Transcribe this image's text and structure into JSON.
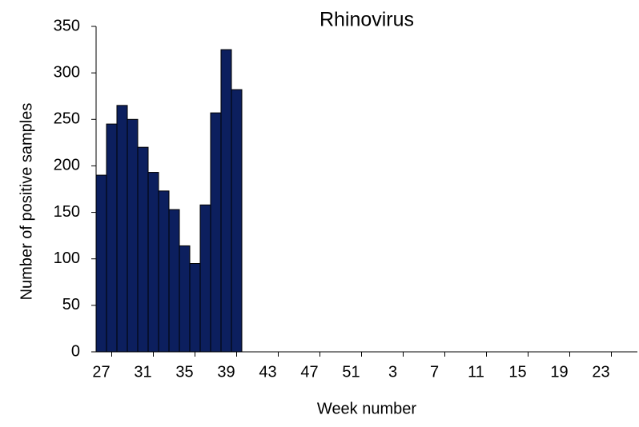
{
  "chart_data": {
    "type": "bar",
    "title": "Rhinovirus",
    "x_label": "Week number",
    "y_label": "Number of positive samples",
    "categories": [
      "27",
      null,
      null,
      null,
      "31",
      null,
      null,
      null,
      "35",
      null,
      null,
      null,
      "39",
      null,
      null,
      null,
      "43",
      null,
      null,
      null,
      "47",
      null,
      null,
      null,
      "51",
      null,
      null,
      null,
      "3",
      null,
      null,
      null,
      "7",
      null,
      null,
      null,
      "11",
      null,
      null,
      null,
      "15",
      null,
      null,
      null,
      "19",
      null,
      null,
      null,
      "23",
      null,
      null,
      null
    ],
    "values": [
      190,
      245,
      265,
      250,
      220,
      193,
      173,
      153,
      114,
      95,
      158,
      257,
      325,
      282,
      null,
      null,
      null,
      null,
      null,
      null,
      null,
      null,
      null,
      null,
      null,
      null,
      null,
      null,
      null,
      null,
      null,
      null,
      null,
      null,
      null,
      null,
      null,
      null,
      null,
      null,
      null,
      null,
      null,
      null,
      null,
      null,
      null,
      null,
      null,
      null,
      null,
      null
    ],
    "color": "#0c1f5e",
    "ylim": [
      0,
      350
    ],
    "yticks": [
      0,
      50,
      100,
      150,
      200,
      250,
      300,
      350
    ],
    "grid": false
  }
}
